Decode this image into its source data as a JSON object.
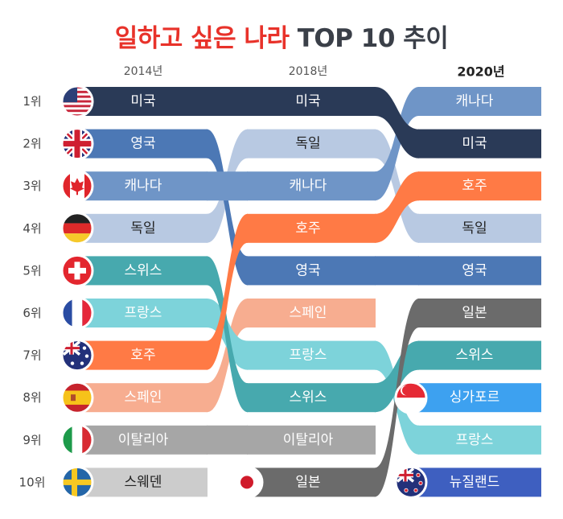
{
  "title": {
    "part_red": "일하고 싶은 나라",
    "part_dark": "TOP 10 추이"
  },
  "chart_data": {
    "type": "bump",
    "title": "일하고 싶은 나라 TOP 10 추이",
    "years": [
      "2014년",
      "2018년",
      "2020년"
    ],
    "ranks": [
      "1위",
      "2위",
      "3위",
      "4위",
      "5위",
      "6위",
      "7위",
      "8위",
      "9위",
      "10위"
    ],
    "series": [
      {
        "name": "미국",
        "color": "#2a3a57",
        "ranks": [
          1,
          1,
          2
        ],
        "labels": [
          "미국",
          "미국",
          "미국"
        ]
      },
      {
        "name": "영국",
        "color": "#4c78b5",
        "ranks": [
          2,
          5,
          5
        ],
        "labels": [
          "영국",
          "영국",
          "영국"
        ]
      },
      {
        "name": "캐나다",
        "color": "#6f95c7",
        "ranks": [
          3,
          3,
          1
        ],
        "labels": [
          "캐나다",
          "캐나다",
          "캐나다"
        ]
      },
      {
        "name": "독일",
        "color": "#b8c9e2",
        "ranks": [
          4,
          2,
          4
        ],
        "labels": [
          "독일",
          "독일",
          "독일"
        ],
        "dark_text": true
      },
      {
        "name": "스위스",
        "color": "#47a9ae",
        "ranks": [
          5,
          8,
          7
        ],
        "labels": [
          "스위스",
          "스위스",
          "스위스"
        ]
      },
      {
        "name": "프랑스",
        "color": "#7dd3da",
        "ranks": [
          6,
          7,
          9
        ],
        "labels": [
          "프랑스",
          "프랑스",
          "프랑스"
        ]
      },
      {
        "name": "호주",
        "color": "#ff7a45",
        "ranks": [
          7,
          4,
          3
        ],
        "labels": [
          "호주",
          "호주",
          "호주"
        ]
      },
      {
        "name": "스페인",
        "color": "#f7ad90",
        "ranks": [
          8,
          6,
          null
        ],
        "labels": [
          "스페인",
          "스페인",
          ""
        ]
      },
      {
        "name": "이탈리아",
        "color": "#a6a6a6",
        "ranks": [
          9,
          9,
          null
        ],
        "labels": [
          "이탈리아",
          "이탈리아",
          ""
        ]
      },
      {
        "name": "스웨덴",
        "color": "#cccccc",
        "ranks": [
          10,
          null,
          null
        ],
        "labels": [
          "스웨덴",
          "",
          ""
        ],
        "dark_text": true
      },
      {
        "name": "일본",
        "color": "#6b6b6b",
        "ranks": [
          null,
          10,
          6
        ],
        "labels": [
          "",
          "일본",
          "일본"
        ]
      },
      {
        "name": "싱가포르",
        "color": "#3da1f0",
        "ranks": [
          null,
          null,
          8
        ],
        "labels": [
          "",
          "",
          "싱가포르"
        ]
      },
      {
        "name": "뉴질랜드",
        "color": "#3e5fc0",
        "ranks": [
          null,
          null,
          10
        ],
        "labels": [
          "",
          "",
          "뉴질랜드"
        ]
      }
    ],
    "flag_icons": [
      {
        "name": "usa-flag-icon",
        "column": "2014년",
        "rank": 1
      },
      {
        "name": "uk-flag-icon",
        "column": "2014년",
        "rank": 2
      },
      {
        "name": "canada-flag-icon",
        "column": "2014년",
        "rank": 3
      },
      {
        "name": "germany-flag-icon",
        "column": "2014년",
        "rank": 4
      },
      {
        "name": "switzerland-flag-icon",
        "column": "2014년",
        "rank": 5
      },
      {
        "name": "france-flag-icon",
        "column": "2014년",
        "rank": 6
      },
      {
        "name": "australia-flag-icon",
        "column": "2014년",
        "rank": 7
      },
      {
        "name": "spain-flag-icon",
        "column": "2014년",
        "rank": 8
      },
      {
        "name": "italy-flag-icon",
        "column": "2014년",
        "rank": 9
      },
      {
        "name": "sweden-flag-icon",
        "column": "2014년",
        "rank": 10
      },
      {
        "name": "japan-flag-icon",
        "column": "2018년",
        "rank": 10
      },
      {
        "name": "singapore-flag-icon",
        "column": "2020년",
        "rank": 8
      },
      {
        "name": "new-zealand-flag-icon",
        "column": "2020년",
        "rank": 10
      }
    ]
  }
}
